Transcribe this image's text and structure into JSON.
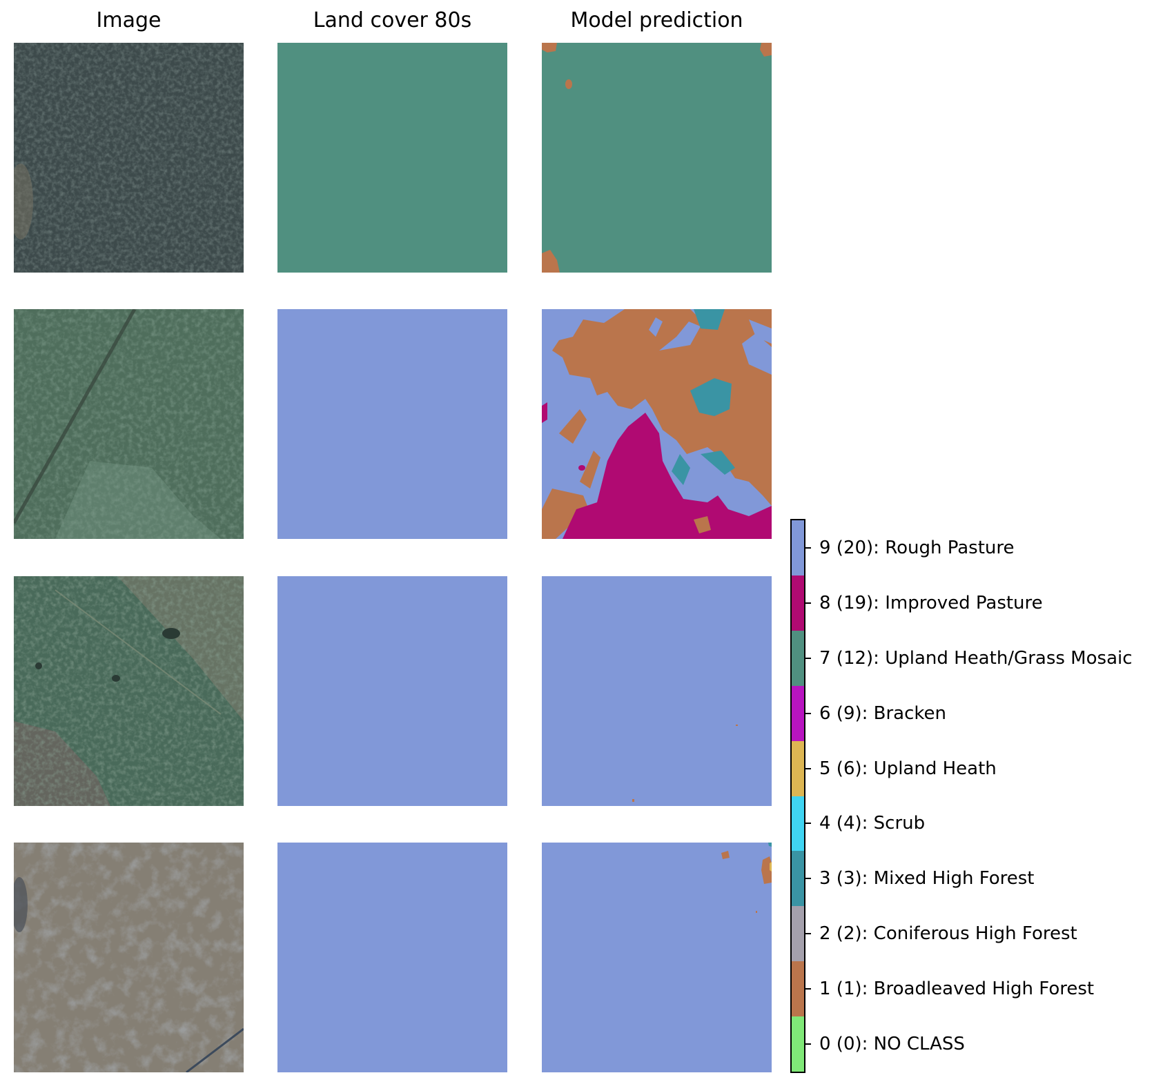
{
  "columns": [
    {
      "title": "Image"
    },
    {
      "title": "Land cover 80s"
    },
    {
      "title": "Model prediction"
    }
  ],
  "legend": {
    "classes": [
      {
        "label": "9 (20): Rough Pasture",
        "color": "#8198d8"
      },
      {
        "label": "8 (19): Improved Pasture",
        "color": "#b00a72"
      },
      {
        "label": "7 (12): Upland Heath/Grass Mosaic",
        "color": "#509080"
      },
      {
        "label": "6 (9): Bracken",
        "color": "#b814c0"
      },
      {
        "label": "5 (6): Upland Heath",
        "color": "#ddb653"
      },
      {
        "label": "4 (4): Scrub",
        "color": "#40d4f2"
      },
      {
        "label": "3 (3): Mixed High Forest",
        "color": "#3a94a4"
      },
      {
        "label": "2 (2): Coniferous High Forest",
        "color": "#a4a0ac"
      },
      {
        "label": "1 (1): Broadleaved High Forest",
        "color": "#ba754c"
      },
      {
        "label": "0 (0): NO CLASS",
        "color": "#80e878"
      }
    ]
  },
  "rows": [
    {
      "photo_palette": [
        "#3d4a4b",
        "#4a5a4f",
        "#56665c"
      ],
      "landcover_class": "7 (12): Upland Heath/Grass Mosaic",
      "landcover_color": "#509080",
      "prediction_base_color": "#509080"
    },
    {
      "photo_palette": [
        "#4a6a58",
        "#5a7a66",
        "#3e5a4a"
      ],
      "landcover_class": "9 (20): Rough Pasture",
      "landcover_color": "#8198d8",
      "prediction_base_color": "#8198d8"
    },
    {
      "photo_palette": [
        "#496a5a",
        "#3a5a4a",
        "#7a7468"
      ],
      "landcover_class": "9 (20): Rough Pasture",
      "landcover_color": "#8198d8",
      "prediction_base_color": "#8198d8"
    },
    {
      "photo_palette": [
        "#7a7a74",
        "#8a8880",
        "#5a6068"
      ],
      "landcover_class": "9 (20): Rough Pasture",
      "landcover_color": "#8198d8",
      "prediction_base_color": "#8198d8"
    }
  ]
}
